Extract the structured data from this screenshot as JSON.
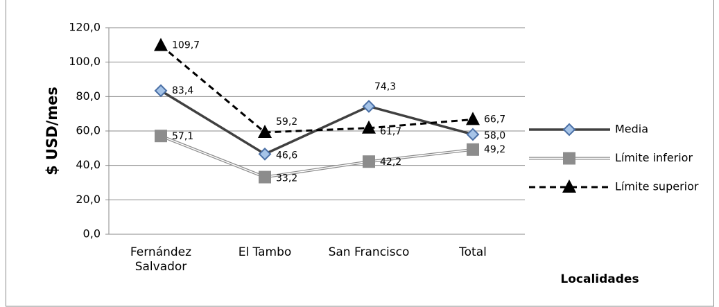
{
  "chart_data": {
    "type": "line",
    "y_label": "$ USD/mes",
    "x_label": "Localidades",
    "categories": [
      "Fernández Salvador",
      "El Tambo",
      "San Francisco",
      "Total"
    ],
    "series": [
      {
        "name": "Media",
        "color": "#404040",
        "values": [
          83.4,
          46.6,
          74.3,
          58.0
        ],
        "value_labels": [
          "83,4",
          "46,6",
          "74,3",
          "58,0"
        ]
      },
      {
        "name": "Límite inferior",
        "color": "#8c8c8c",
        "values": [
          57.1,
          33.2,
          42.2,
          49.2
        ],
        "value_labels": [
          "57,1",
          "33,2",
          "42,2",
          "49,2"
        ]
      },
      {
        "name": "Límite superior",
        "color": "#000000",
        "values": [
          109.7,
          59.2,
          61.7,
          66.7
        ],
        "value_labels": [
          "109,7",
          "59,2",
          "61,7",
          "66,7"
        ]
      }
    ],
    "ylim": [
      0,
      120
    ],
    "yticks": [
      {
        "value": 0,
        "label": "0,0"
      },
      {
        "value": 20,
        "label": "20,0"
      },
      {
        "value": 40,
        "label": "40,0"
      },
      {
        "value": 60,
        "label": "60,0"
      },
      {
        "value": 80,
        "label": "80,0"
      },
      {
        "value": 100,
        "label": "100,0"
      },
      {
        "value": 120,
        "label": "120,0"
      }
    ],
    "grid": true,
    "legend": "right"
  }
}
